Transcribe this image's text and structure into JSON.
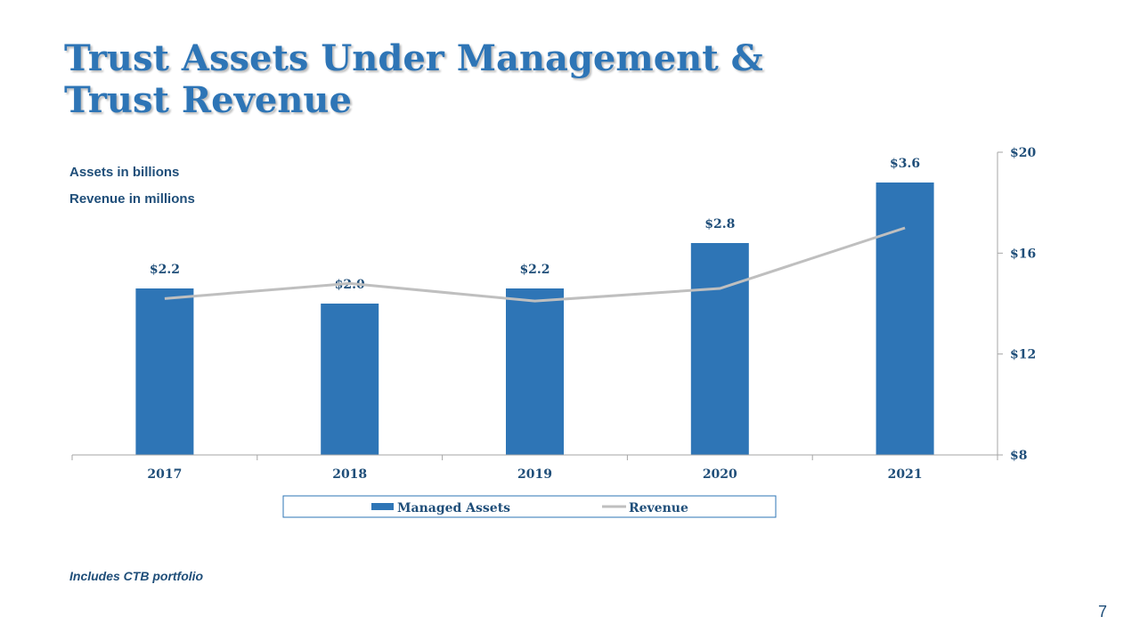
{
  "slide": {
    "title_line1": "Trust Assets Under Management &",
    "title_line2": "Trust Revenue",
    "note_assets": "Assets in billions",
    "note_revenue": "Revenue in millions",
    "footnote": "Includes CTB portfolio",
    "page_number": "7"
  },
  "colors": {
    "title": "#2E75B6",
    "bar": "#2E75B6",
    "line": "#BFBFBF",
    "text": "#1F4E79"
  },
  "chart_data": {
    "type": "bar",
    "categories": [
      "2017",
      "2018",
      "2019",
      "2020",
      "2021"
    ],
    "series": [
      {
        "name": "Managed Assets",
        "type": "bar",
        "axis": "primary",
        "values": [
          2.2,
          2.0,
          2.2,
          2.8,
          3.6
        ],
        "labels": [
          "$2.2",
          "$2.0",
          "$2.2",
          "$2.8",
          "$3.6"
        ]
      },
      {
        "name": "Revenue",
        "type": "line",
        "axis": "secondary",
        "values": [
          14.2,
          14.8,
          14.1,
          14.6,
          17.0
        ]
      }
    ],
    "primary_axis": {
      "ylim": [
        0,
        4.0
      ],
      "visible": false
    },
    "secondary_axis": {
      "ylim": [
        8,
        20
      ],
      "ticks": [
        8,
        12,
        16,
        20
      ],
      "tick_labels": [
        "$8",
        "$12",
        "$16",
        "$20"
      ]
    },
    "legend": {
      "position": "bottom",
      "entries": [
        "Managed Assets",
        "Revenue"
      ]
    },
    "grid": false
  }
}
